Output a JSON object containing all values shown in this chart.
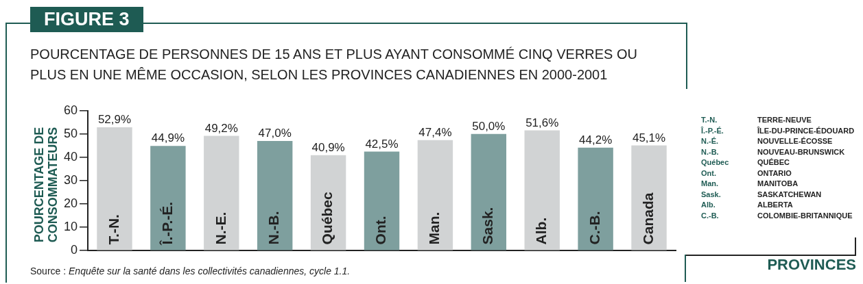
{
  "chart_data": {
    "type": "bar",
    "title": "FIGURE 3",
    "subtitle": "POURCENTAGE DE PERSONNES DE 15 ANS ET PLUS AYANT CONSOMMÉ CINQ VERRES OU PLUS EN UNE MÊME OCCASION, SELON LES PROVINCES CANADIENNES EN 2000-2001",
    "ylabel": "POURCENTAGE DE CONSOMMATEURS",
    "categories": [
      "T.-N.",
      "Î.-P.-É.",
      "N.-E.",
      "N.-B.",
      "Québec",
      "Ont.",
      "Man.",
      "Sask.",
      "Alb.",
      "C.-B.",
      "Canada"
    ],
    "values": [
      52.9,
      44.9,
      49.2,
      47.0,
      40.9,
      42.5,
      47.4,
      50.0,
      51.6,
      44.2,
      45.1
    ],
    "value_labels": [
      "52,9%",
      "44,9%",
      "49,2%",
      "47,0%",
      "40,9%",
      "42,5%",
      "47,4%",
      "50,0%",
      "51,6%",
      "44,2%",
      "45,1%"
    ],
    "colors": [
      "#d1d3d4",
      "#7e9f9e",
      "#d1d3d4",
      "#7e9f9e",
      "#d1d3d4",
      "#7e9f9e",
      "#d1d3d4",
      "#7e9f9e",
      "#d1d3d4",
      "#7e9f9e",
      "#d1d3d4"
    ],
    "ylim": [
      0,
      60
    ],
    "yticks": [
      0,
      10,
      20,
      30,
      40,
      50,
      60
    ],
    "annotations": [
      "Source : Enquête sur la santé dans les collectivités canadiennes, cycle 1.1.",
      "T.-N.",
      "TERRE-NEUVE",
      "Î.-P.-É.",
      "ÎLE-DU-PRINCE-ÉDOUARD",
      "N.-É.",
      "NOUVELLE-ÉCOSSE",
      "N.-B.",
      "NOUVEAU-BRUNSWICK",
      "Québec",
      "QUÉBEC",
      "Ont.",
      "ONTARIO",
      "Man.",
      "MANITOBA",
      "Sask.",
      "SASKATCHEWAN",
      "Alb.",
      "ALBERTA",
      "C.-B.",
      "COLOMBIE-BRITANNIQUE",
      "PROVINCES"
    ]
  }
}
